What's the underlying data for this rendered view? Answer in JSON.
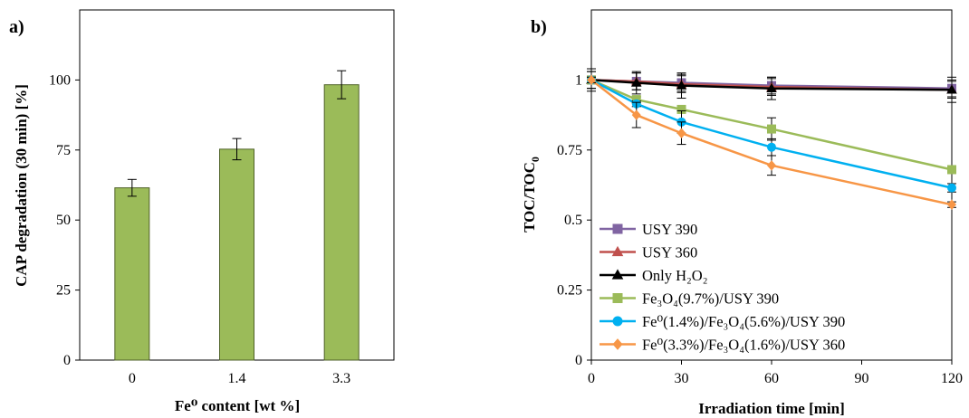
{
  "chart_data": [
    {
      "type": "bar",
      "panel_label": "a)",
      "categories": [
        "0",
        "1.4",
        "3.3"
      ],
      "values": [
        61.5,
        75.3,
        98.3
      ],
      "errors": [
        3.0,
        3.8,
        5.0
      ],
      "xlabel": "Fe⁰ content [wt %]",
      "ylabel": "CAP degradation (30 min) [%]",
      "ylim": [
        0,
        125
      ],
      "yticks": [
        "0",
        "25",
        "50",
        "75",
        "100"
      ],
      "bar_color": "#9bbb59",
      "grid": false
    },
    {
      "type": "line",
      "panel_label": "b)",
      "xlabel": "Irradiation time [min]",
      "ylabel": "TOC/TOC",
      "ylabel_sub": "0",
      "xlim": [
        0,
        120
      ],
      "ylim": [
        0,
        1.25
      ],
      "xticks": [
        "0",
        "30",
        "60",
        "90",
        "120"
      ],
      "yticks": [
        "0",
        "0.25",
        "0.5",
        "0.75",
        "1"
      ],
      "legend_position": "bottom-left",
      "grid": false,
      "series": [
        {
          "name": "USY 390",
          "color": "#8064a2",
          "marker": "square",
          "x": [
            0,
            15,
            30,
            60,
            120
          ],
          "y": [
            1.0,
            0.995,
            0.99,
            0.98,
            0.97
          ],
          "err": [
            0.03,
            0.03,
            0.03,
            0.03,
            0.03
          ]
        },
        {
          "name": "USY 360",
          "color": "#c0504d",
          "marker": "triangle",
          "x": [
            0,
            15,
            30,
            60,
            120
          ],
          "y": [
            1.0,
            0.995,
            0.985,
            0.975,
            0.965
          ],
          "err": [
            0.03,
            0.03,
            0.03,
            0.03,
            0.03
          ]
        },
        {
          "name": "Only H₂O₂",
          "color": "#000000",
          "marker": "triangle",
          "x": [
            0,
            15,
            30,
            60,
            120
          ],
          "y": [
            1.0,
            0.99,
            0.98,
            0.97,
            0.965
          ],
          "err": [
            0.04,
            0.04,
            0.045,
            0.04,
            0.045
          ]
        },
        {
          "name": "Fe₃O₄(9.7%)/USY 390",
          "color": "#9bbb59",
          "marker": "square",
          "x": [
            0,
            15,
            30,
            60,
            120
          ],
          "y": [
            1.0,
            0.93,
            0.895,
            0.825,
            0.68
          ],
          "err": [
            0.01,
            0.01,
            0.01,
            0.04,
            0.01
          ]
        },
        {
          "name": "Fe⁰(1.4%)/Fe₃O₄(5.6%)/USY 390",
          "color": "#00b0f0",
          "marker": "circle",
          "x": [
            0,
            15,
            30,
            60,
            120
          ],
          "y": [
            1.0,
            0.915,
            0.85,
            0.76,
            0.615
          ],
          "err": [
            0.01,
            0.01,
            0.04,
            0.03,
            0.015
          ]
        },
        {
          "name": "Fe⁰(3.3%)/Fe₃O₄(1.6%)/USY 360",
          "color": "#f79646",
          "marker": "diamond",
          "x": [
            0,
            15,
            30,
            60,
            120
          ],
          "y": [
            1.0,
            0.875,
            0.81,
            0.695,
            0.555
          ],
          "err": [
            0.01,
            0.045,
            0.04,
            0.035,
            0.01
          ]
        }
      ]
    }
  ]
}
